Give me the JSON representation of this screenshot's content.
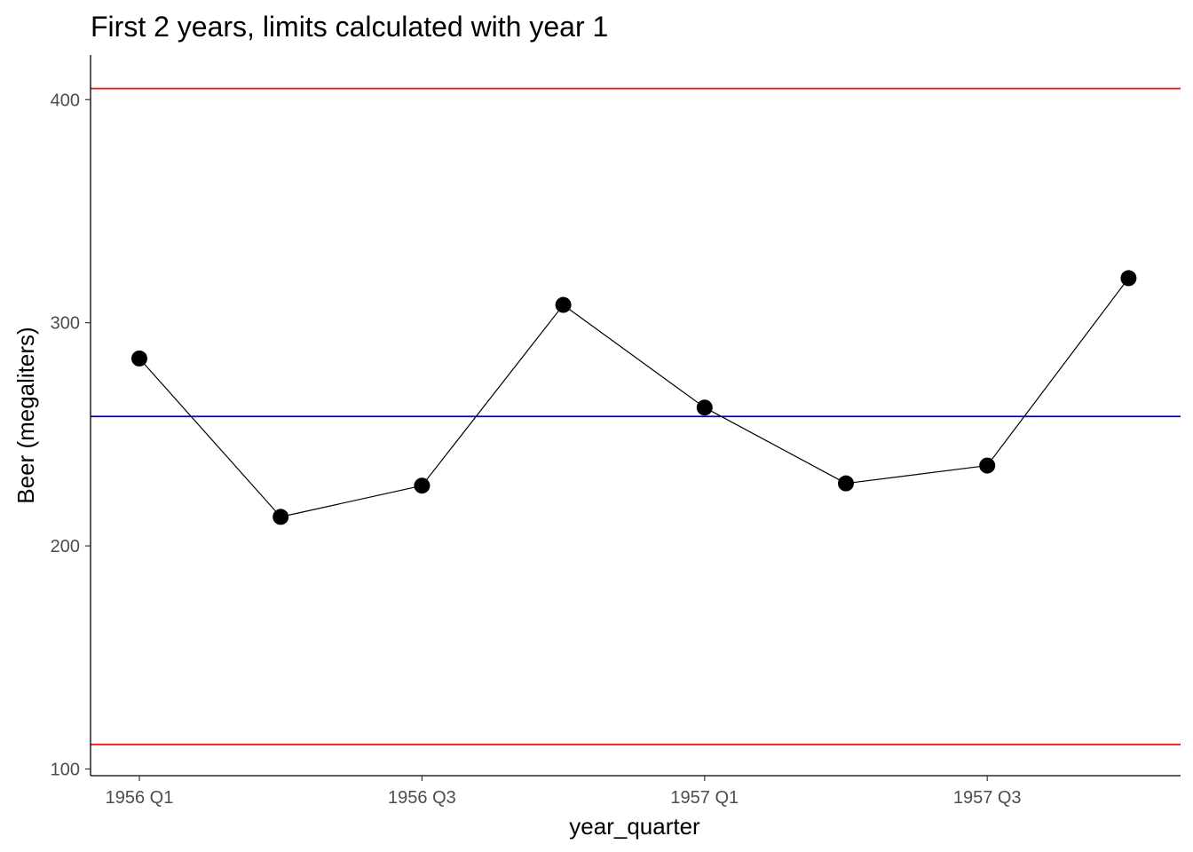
{
  "chart_data": {
    "type": "line",
    "title": "First 2 years, limits calculated with year 1",
    "xlabel": "year_quarter",
    "ylabel": "Beer (megaliters)",
    "categories": [
      "1956 Q1",
      "1956 Q2",
      "1956 Q3",
      "1956 Q4",
      "1957 Q1",
      "1957 Q2",
      "1957 Q3",
      "1957 Q4"
    ],
    "x_tick_labels": [
      "1956 Q1",
      "",
      "1956 Q3",
      "",
      "1957 Q1",
      "",
      "1957 Q3",
      ""
    ],
    "values": [
      284,
      213,
      227,
      308,
      262,
      228,
      236,
      320
    ],
    "y_ticks": [
      100,
      200,
      300,
      400
    ],
    "ylim": [
      97,
      420
    ],
    "reference_lines": [
      {
        "value": 405,
        "color": "#e41a1c"
      },
      {
        "value": 258,
        "color": "#0000cc"
      },
      {
        "value": 111,
        "color": "#e41a1c"
      }
    ],
    "series_color": "#000000",
    "grid": false,
    "legend": "none"
  }
}
